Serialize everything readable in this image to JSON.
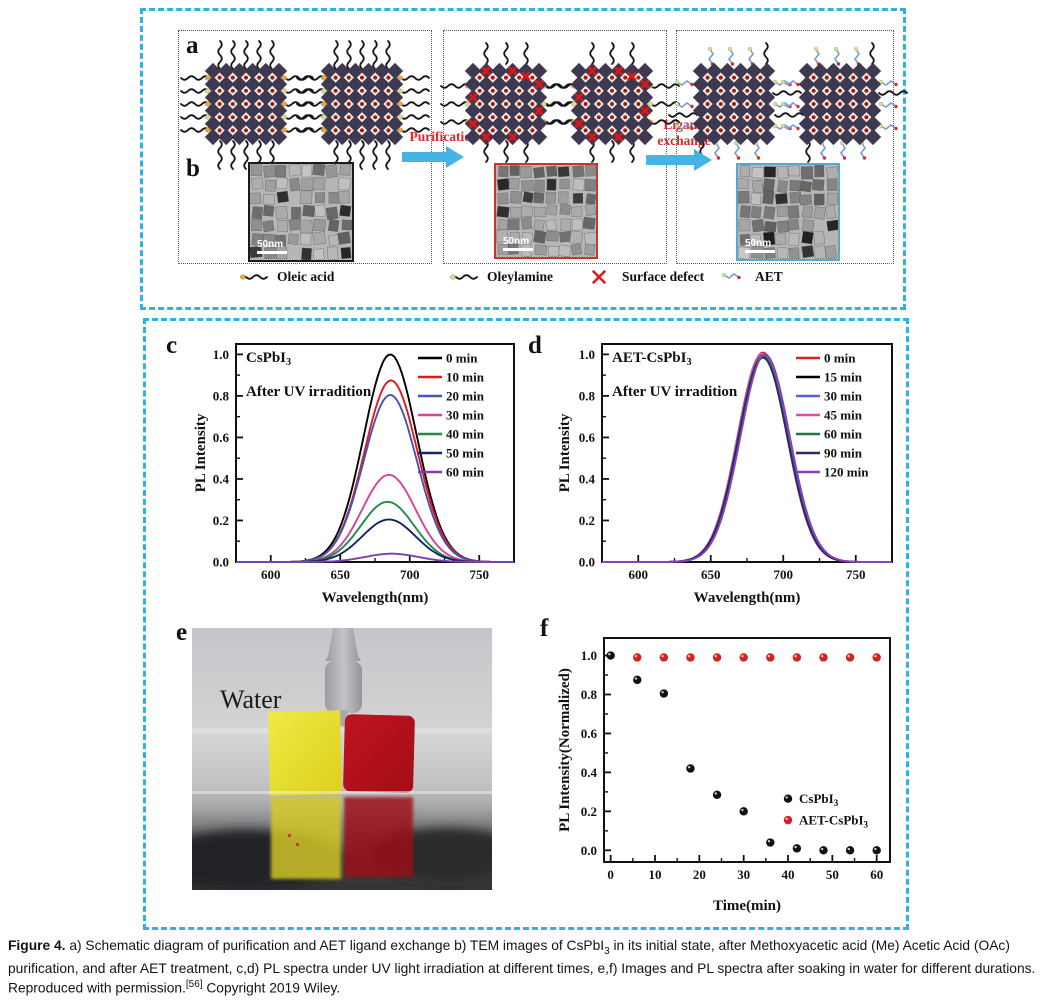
{
  "panel_labels": {
    "a": "a",
    "b": "b",
    "c": "c",
    "d": "d",
    "e": "e",
    "f": "f"
  },
  "schematic": {
    "arrow1_label": "Purification",
    "arrow2_label_line1": "Ligand",
    "arrow2_label_line2": "exchange",
    "arrow_color": "#45b3e4",
    "arrow_label_color": "#d92b26",
    "lattice_color": "#3e3950",
    "cell_color": "#f4eede",
    "dot_color": "#9e1b1b",
    "defect_color": "#e01616",
    "ligand_color": "#151515",
    "oleic_head_color": "#e5a83e",
    "oleylamine_head_color": "#d9d992",
    "aet_chain_color": "#7b9bd2",
    "aet_tip_color": "#cc3333",
    "aet_head_color": "#cfe09a",
    "legend": [
      {
        "name": "Oleic acid",
        "icon": "oleic-acid-ligand-icon"
      },
      {
        "name": "Oleylamine",
        "icon": "oleylamine-ligand-icon"
      },
      {
        "name": "Surface defect",
        "icon": "surface-defect-icon"
      },
      {
        "name": "AET",
        "icon": "aet-molecule-icon"
      }
    ]
  },
  "tem": [
    {
      "scale_label": "50nm",
      "border_color": "#1a1a1a",
      "seed": 11
    },
    {
      "scale_label": "50nm",
      "border_color": "#c0392b",
      "seed": 22
    },
    {
      "scale_label": "50nm",
      "border_color": "#55a8d2",
      "seed": 33
    }
  ],
  "panel_e": {
    "annotation": "Water",
    "yellow_film_color": "#e8df2e",
    "red_film_color": "#b3121a"
  },
  "chart_data": [
    {
      "id": "c",
      "type": "line",
      "title": {
        "text": "CsPbI",
        "sub": "3"
      },
      "annotation": "After UV irradition",
      "xlabel": "Wavelength(nm)",
      "ylabel": "PL Intensity",
      "xlim": [
        575,
        775
      ],
      "ylim": [
        0,
        1.05
      ],
      "xticks": [
        600,
        650,
        700,
        750
      ],
      "xminor": 25,
      "yticks": [
        0.0,
        0.2,
        0.4,
        0.6,
        0.8,
        1.0
      ],
      "yminor": 0.1,
      "peak_center_nm": 686,
      "peak_fwhm_nm": 45,
      "legend_position": "top-right",
      "grid": false,
      "series": [
        {
          "name": "0 min",
          "color": "#000000",
          "peak": 1.0,
          "center_offset": 0
        },
        {
          "name": "10 min",
          "color": "#e0191c",
          "peak": 0.875,
          "center_offset": 0.5
        },
        {
          "name": "20 min",
          "color": "#4553b4",
          "peak": 0.805,
          "center_offset": 0
        },
        {
          "name": "30 min",
          "color": "#d44397",
          "peak": 0.42,
          "center_offset": -1
        },
        {
          "name": "40 min",
          "color": "#208b45",
          "peak": 0.29,
          "center_offset": -2
        },
        {
          "name": "50 min",
          "color": "#16255f",
          "peak": 0.205,
          "center_offset": -1
        },
        {
          "name": "60 min",
          "color": "#7e3fae",
          "peak": 0.04,
          "center_offset": 1
        }
      ]
    },
    {
      "id": "d",
      "type": "line",
      "title": {
        "text": "AET-CsPbI",
        "sub": "3"
      },
      "annotation": "After UV irradition",
      "xlabel": "Wavelength(nm)",
      "ylabel": "PL Intensity",
      "xlim": [
        575,
        775
      ],
      "ylim": [
        0,
        1.05
      ],
      "xticks": [
        600,
        650,
        700,
        750
      ],
      "xminor": 25,
      "yticks": [
        0.0,
        0.2,
        0.4,
        0.6,
        0.8,
        1.0
      ],
      "yminor": 0.1,
      "peak_center_nm": 686,
      "peak_fwhm_nm": 40,
      "legend_position": "top-right",
      "grid": false,
      "series": [
        {
          "name": "0 min",
          "color": "#d9201f",
          "peak": 1.01,
          "center_offset": 0
        },
        {
          "name": "15 min",
          "color": "#000000",
          "peak": 0.99,
          "center_offset": 0
        },
        {
          "name": "30 min",
          "color": "#5563cc",
          "peak": 1.0,
          "center_offset": 0.5
        },
        {
          "name": "45 min",
          "color": "#d24fb0",
          "peak": 1.005,
          "center_offset": -0.5
        },
        {
          "name": "60 min",
          "color": "#1d7a48",
          "peak": 0.995,
          "center_offset": 0
        },
        {
          "name": "90 min",
          "color": "#2b2a5e",
          "peak": 0.985,
          "center_offset": 0
        },
        {
          "name": "120 min",
          "color": "#8a3fbc",
          "peak": 1.0,
          "center_offset": 1.5
        }
      ]
    },
    {
      "id": "f",
      "type": "scatter",
      "xlabel": "Time(min)",
      "ylabel": "PL Intensity(Normalized)",
      "xlim": [
        -1.5,
        63
      ],
      "ylim": [
        -0.06,
        1.09
      ],
      "xticks": [
        0,
        10,
        20,
        30,
        40,
        50,
        60
      ],
      "xminor": 5,
      "yticks": [
        0.0,
        0.2,
        0.4,
        0.6,
        0.8,
        1.0
      ],
      "yminor": 0.1,
      "legend_position": "middle-right",
      "grid": false,
      "series": [
        {
          "name": {
            "label": "CsPbI",
            "sub": "3"
          },
          "color": "#111111",
          "x": [
            0,
            6,
            12,
            18,
            24,
            30,
            36,
            42,
            48,
            54,
            60
          ],
          "y": [
            1.0,
            0.875,
            0.805,
            0.42,
            0.285,
            0.2,
            0.04,
            0.01,
            0.0,
            0.0,
            0.0
          ]
        },
        {
          "name": {
            "label": "AET-CsPbI",
            "sub": "3"
          },
          "color": "#d9201f",
          "x": [
            6,
            12,
            18,
            24,
            30,
            36,
            42,
            48,
            54,
            60
          ],
          "y": [
            0.99,
            0.99,
            0.99,
            0.99,
            0.99,
            0.99,
            0.99,
            0.99,
            0.99,
            0.99
          ]
        }
      ]
    }
  ],
  "caption": {
    "segments": [
      {
        "text": "Figure 4.",
        "style": "bold"
      },
      {
        "text": "  a) Schematic diagram of purification and AET ligand exchange b) TEM images of CsPbI",
        "style": "normal"
      },
      {
        "text": "3",
        "style": "sub"
      },
      {
        "text": " in its initial state, after Methoxyacetic acid (Me) Acetic Acid (OAc) purification, and after AET treatment, c,d) PL spectra under UV light irradiation at different times, e,f) Images and PL spectra after soaking in water for different durations. Reproduced with permission.",
        "style": "normal"
      },
      {
        "text": "[56]",
        "style": "sup"
      },
      {
        "text": " Copyright 2019 Wiley.",
        "style": "normal"
      }
    ]
  }
}
